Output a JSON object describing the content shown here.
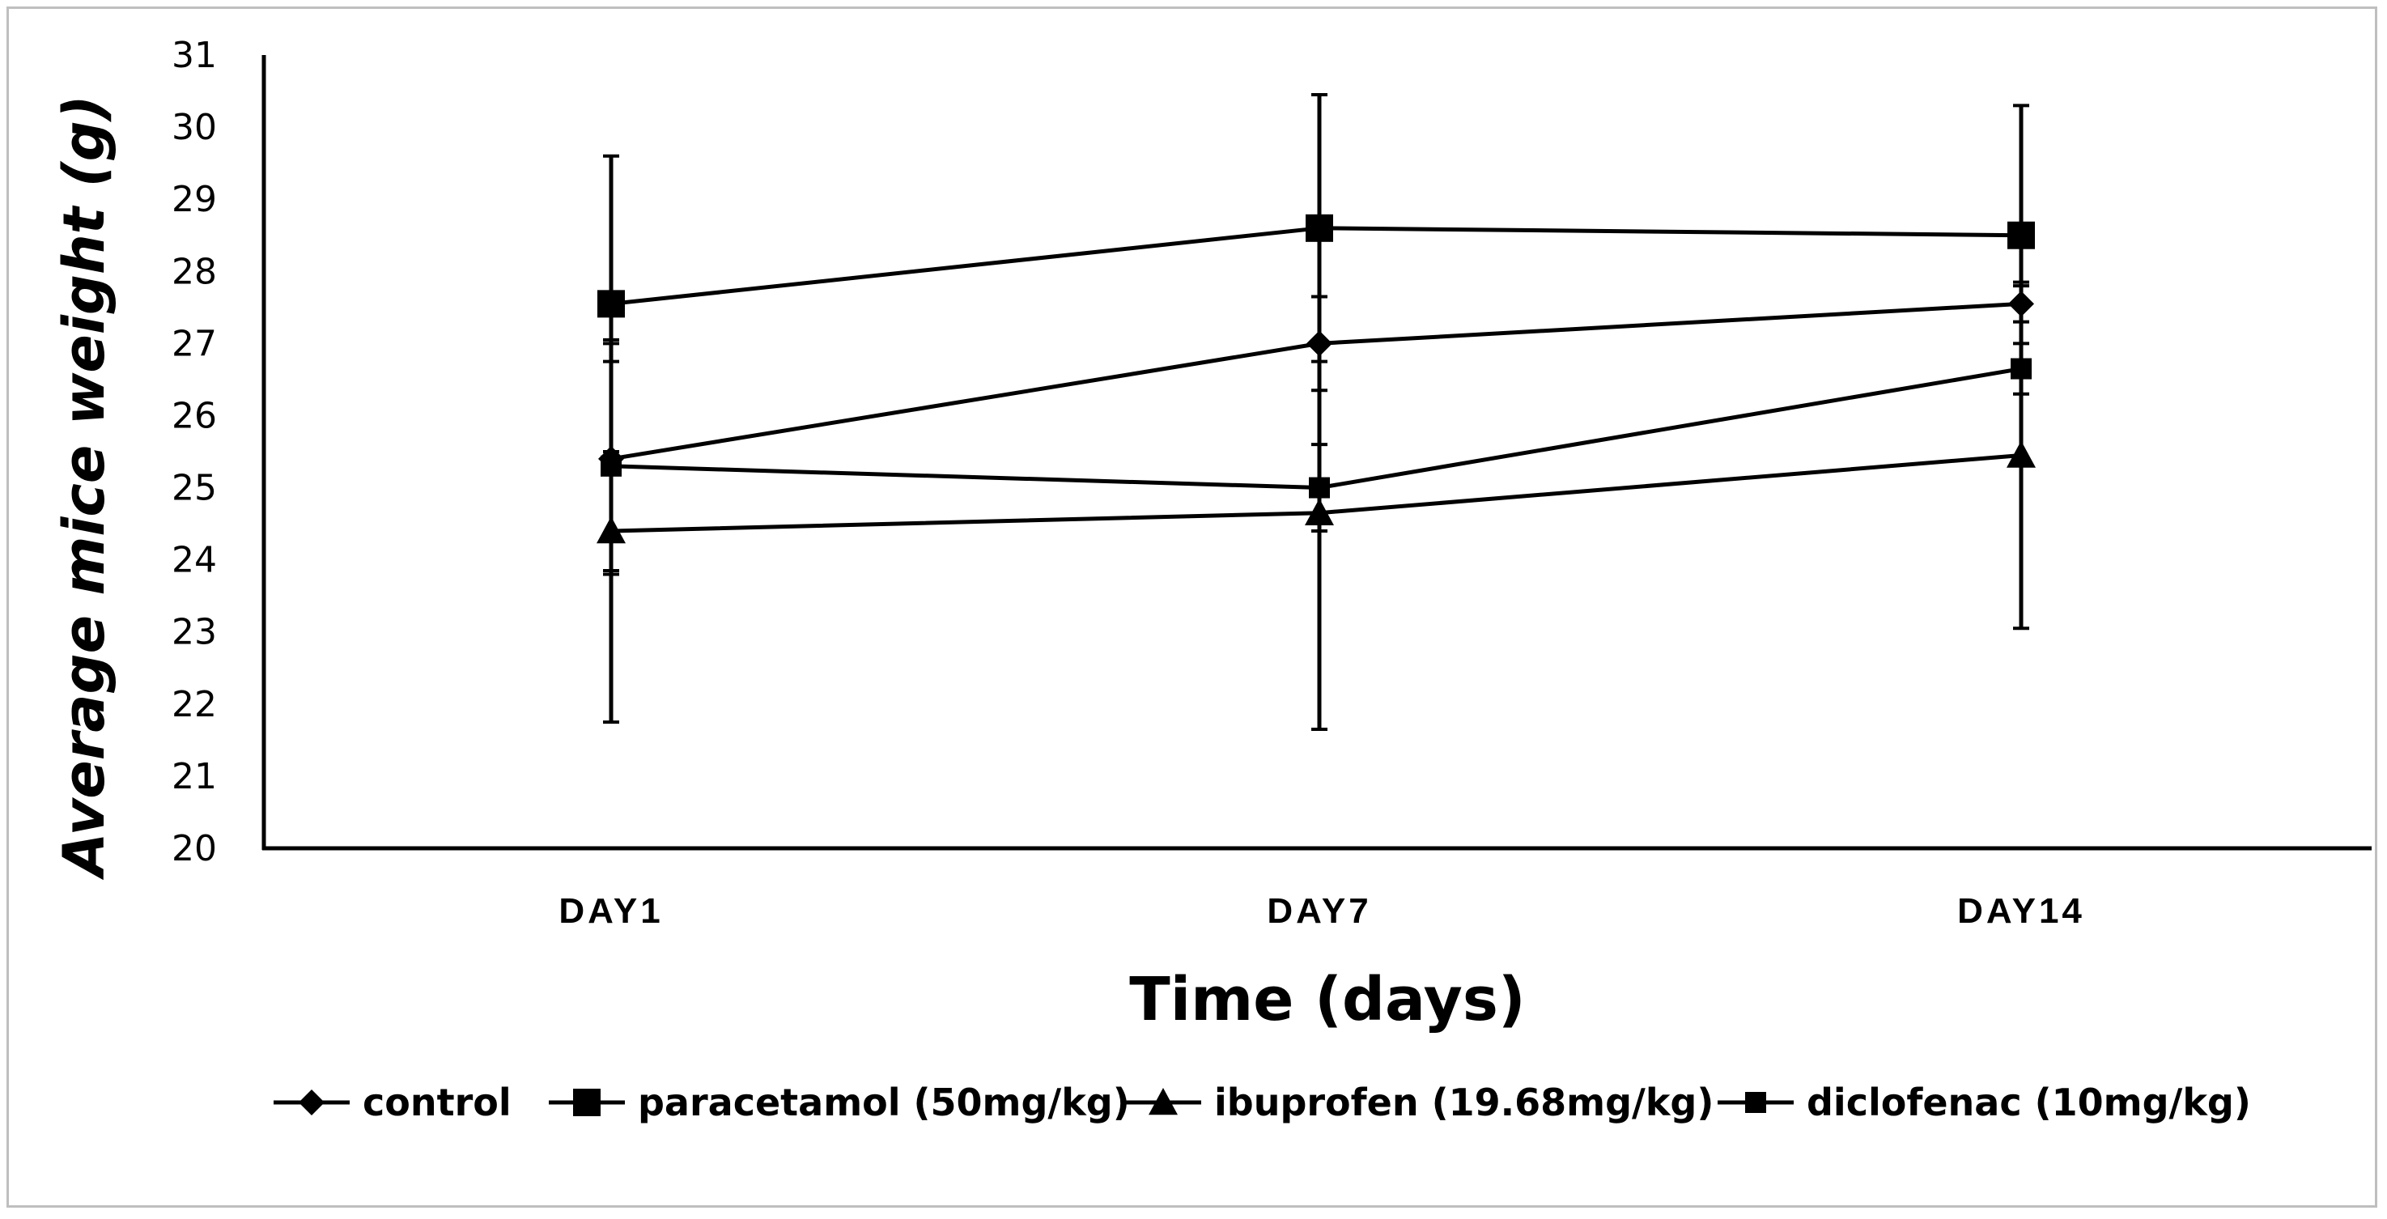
{
  "chart_data": {
    "type": "line",
    "categories": [
      "DAY1",
      "DAY7",
      "DAY14"
    ],
    "xlabel": "Time (days)",
    "ylabel": "Average mice weight (g)",
    "ylim": [
      20,
      31
    ],
    "yticks": [
      20,
      21,
      22,
      23,
      24,
      25,
      26,
      27,
      28,
      29,
      30,
      31
    ],
    "grid": false,
    "legend_position": "bottom",
    "series": [
      {
        "name": "control",
        "marker": "diamond",
        "values": [
          25.4,
          27.0,
          27.55
        ],
        "errors": [
          1.6,
          0.65,
          0.25
        ]
      },
      {
        "name": "paracetamol (50mg/kg)",
        "marker": "square",
        "values": [
          27.55,
          28.6,
          28.5
        ],
        "errors": [
          2.05,
          1.85,
          1.8
        ]
      },
      {
        "name": "ibuprofen (19.68mg/kg)",
        "marker": "triangle",
        "values": [
          24.4,
          24.65,
          25.45
        ],
        "errors": [
          2.65,
          3.0,
          2.4
        ]
      },
      {
        "name": "diclofenac (10mg/kg)",
        "marker": "square-small",
        "values": [
          25.3,
          25.0,
          26.65
        ],
        "errors": [
          1.45,
          0.6,
          0.35
        ]
      }
    ]
  }
}
